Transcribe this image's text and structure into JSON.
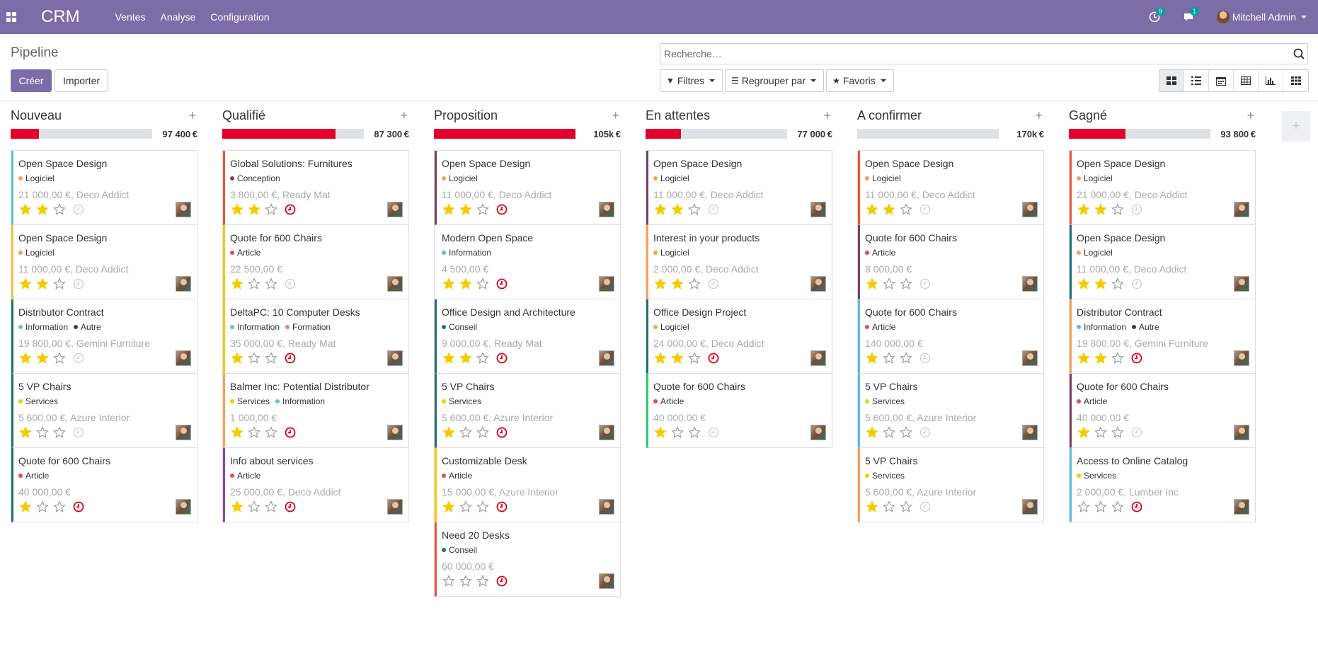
{
  "app": {
    "brand": "CRM",
    "menu": [
      "Ventes",
      "Analyse",
      "Configuration"
    ]
  },
  "systray": {
    "activity_count": "9",
    "message_count": "1",
    "user": "Mitchell Admin"
  },
  "control_panel": {
    "breadcrumb": "Pipeline",
    "create_label": "Créer",
    "import_label": "Importer",
    "search_placeholder": "Recherche…",
    "filters_label": "Filtres",
    "group_by_label": "Regrouper par",
    "favorites_label": "Favoris",
    "views": [
      "kanban",
      "list",
      "calendar",
      "pivot",
      "graph",
      "cohort"
    ]
  },
  "colors": {
    "accent": "#7c6ca8",
    "danger": "#e3002b",
    "star": "#f3cc00"
  },
  "columns": [
    {
      "title": "Nouveau",
      "sum": "97 400",
      "currency": "€",
      "progress": 0.2,
      "cards": [
        {
          "title": "Open Space Design",
          "tags": [
            {
              "label": "Logiciel",
              "color": "#f4a259"
            }
          ],
          "sub": "21 000,00 €, Deco Addict",
          "stars": 2,
          "activity": "none",
          "border": "#5bc0de"
        },
        {
          "title": "Open Space Design",
          "tags": [
            {
              "label": "Logiciel",
              "color": "#f4a259"
            }
          ],
          "sub": "11 000,00 €, Deco Addict",
          "stars": 2,
          "activity": "none",
          "border": "#f4c542"
        },
        {
          "title": "Distributor Contract",
          "tags": [
            {
              "label": "Information",
              "color": "#5bc0de"
            },
            {
              "label": "Autre",
              "color": "#3b3b5b"
            }
          ],
          "sub": "19 800,00 €, Gemini Furniture",
          "stars": 2,
          "activity": "none",
          "border": "#1f6f76"
        },
        {
          "title": "5 VP Chairs",
          "tags": [
            {
              "label": "Services",
              "color": "#f3cc00"
            }
          ],
          "sub": "5 600,00 €, Azure Interior",
          "stars": 1,
          "activity": "none",
          "border": "#1f6f76"
        },
        {
          "title": "Quote for 600 Chairs",
          "tags": [
            {
              "label": "Article",
              "color": "#e84a4a"
            }
          ],
          "sub": "40 000,00 €",
          "stars": 1,
          "activity": "late",
          "border": "#1f6f76"
        }
      ]
    },
    {
      "title": "Qualifié",
      "sum": "87 300",
      "currency": "€",
      "progress": 0.8,
      "cards": [
        {
          "title": "Global Solutions: Furnitures",
          "tags": [
            {
              "label": "Conception",
              "color": "#7b3f61"
            }
          ],
          "sub": "3 800,00 €, Ready Mat",
          "stars": 2,
          "activity": "late",
          "border": "#e8553e"
        },
        {
          "title": "Quote for 600 Chairs",
          "tags": [
            {
              "label": "Article",
              "color": "#e84a4a"
            }
          ],
          "sub": "22 500,00 €",
          "stars": 1,
          "activity": "none",
          "border": "#f3cc00"
        },
        {
          "title": "DeltaPC: 10 Computer Desks",
          "tags": [
            {
              "label": "Information",
              "color": "#5bc0de"
            },
            {
              "label": "Formation",
              "color": "#f07b7b"
            }
          ],
          "sub": "35 000,00 €, Ready Mat",
          "stars": 1,
          "activity": "late",
          "border": "#f3cc00"
        },
        {
          "title": "Balmer Inc: Potential Distributor",
          "tags": [
            {
              "label": "Services",
              "color": "#f3cc00"
            },
            {
              "label": "Information",
              "color": "#5bc0de"
            }
          ],
          "sub": "1 000,00 €",
          "stars": 1,
          "activity": "late",
          "border": "#f4a259"
        },
        {
          "title": "Info about services",
          "tags": [
            {
              "label": "Article",
              "color": "#e84a4a"
            }
          ],
          "sub": "25 000,00 €, Deco Addict",
          "stars": 1,
          "activity": "late",
          "border": "#8e44ad"
        }
      ]
    },
    {
      "title": "Proposition",
      "sum": "105k",
      "currency": "€",
      "progress": 1.0,
      "cards": [
        {
          "title": "Open Space Design",
          "tags": [
            {
              "label": "Logiciel",
              "color": "#f4a259"
            }
          ],
          "sub": "11 000,00 €, Deco Addict",
          "stars": 2,
          "activity": "late",
          "border": "#7b3f61"
        },
        {
          "title": "Modern Open Space",
          "tags": [
            {
              "label": "Information",
              "color": "#5bc0de"
            }
          ],
          "sub": "4 500,00 €",
          "stars": 2,
          "activity": "late",
          "border": "#ffffff"
        },
        {
          "title": "Office Design and Architecture",
          "tags": [
            {
              "label": "Conseil",
              "color": "#1f6f76"
            }
          ],
          "sub": "9 000,00 €, Ready Mat",
          "stars": 2,
          "activity": "late",
          "border": "#1f6f76"
        },
        {
          "title": "5 VP Chairs",
          "tags": [
            {
              "label": "Services",
              "color": "#f3cc00"
            }
          ],
          "sub": "5 600,00 €, Azure Interior",
          "stars": 1,
          "activity": "late",
          "border": "#1f6f76"
        },
        {
          "title": "Customizable Desk",
          "tags": [
            {
              "label": "Article",
              "color": "#e84a4a"
            }
          ],
          "sub": "15 000,00 €, Azure Interior",
          "stars": 1,
          "activity": "late",
          "border": "#f3cc00"
        },
        {
          "title": "Need 20 Desks",
          "tags": [
            {
              "label": "Conseil",
              "color": "#1f6f76"
            }
          ],
          "sub": "60 000,00 €",
          "stars": 0,
          "activity": "late",
          "border": "#e8553e"
        }
      ]
    },
    {
      "title": "En attentes",
      "sum": "77 000",
      "currency": "€",
      "progress": 0.25,
      "cards": [
        {
          "title": "Open Space Design",
          "tags": [
            {
              "label": "Logiciel",
              "color": "#f4a259"
            }
          ],
          "sub": "11 000,00 €, Deco Addict",
          "stars": 2,
          "activity": "none",
          "border": "#7b3f61"
        },
        {
          "title": "Interest in your products",
          "tags": [
            {
              "label": "Logiciel",
              "color": "#f4a259"
            }
          ],
          "sub": "2 000,00 €, Deco Addict",
          "stars": 2,
          "activity": "none",
          "border": "#f4a259"
        },
        {
          "title": "Office Design Project",
          "tags": [
            {
              "label": "Logiciel",
              "color": "#f4a259"
            }
          ],
          "sub": "24 000,00 €, Deco Addict",
          "stars": 2,
          "activity": "late",
          "border": "#1f6f76"
        },
        {
          "title": "Quote for 600 Chairs",
          "tags": [
            {
              "label": "Article",
              "color": "#e84a4a"
            }
          ],
          "sub": "40 000,00 €",
          "stars": 1,
          "activity": "none",
          "border": "#2ecc71"
        }
      ]
    },
    {
      "title": "A confirmer",
      "sum": "170k",
      "currency": "€",
      "progress": 0.0,
      "cards": [
        {
          "title": "Open Space Design",
          "tags": [
            {
              "label": "Logiciel",
              "color": "#f4a259"
            }
          ],
          "sub": "11 000,00 €, Deco Addict",
          "stars": 2,
          "activity": "none",
          "border": "#e8553e"
        },
        {
          "title": "Quote for 600 Chairs",
          "tags": [
            {
              "label": "Article",
              "color": "#e84a4a"
            }
          ],
          "sub": "8 000,00 €",
          "stars": 1,
          "activity": "none",
          "border": "#7b3f61"
        },
        {
          "title": "Quote for 600 Chairs",
          "tags": [
            {
              "label": "Article",
              "color": "#e84a4a"
            }
          ],
          "sub": "140 000,00 €",
          "stars": 1,
          "activity": "none",
          "border": "#5bc0de"
        },
        {
          "title": "5 VP Chairs",
          "tags": [
            {
              "label": "Services",
              "color": "#f3cc00"
            }
          ],
          "sub": "5 600,00 €, Azure Interior",
          "stars": 1,
          "activity": "none",
          "border": "#5bc0de"
        },
        {
          "title": "5 VP Chairs",
          "tags": [
            {
              "label": "Services",
              "color": "#f3cc00"
            }
          ],
          "sub": "5 600,00 €, Azure Interior",
          "stars": 1,
          "activity": "none",
          "border": "#f4a259"
        }
      ]
    },
    {
      "title": "Gagné",
      "sum": "93 800",
      "currency": "€",
      "progress": 0.4,
      "cards": [
        {
          "title": "Open Space Design",
          "tags": [
            {
              "label": "Logiciel",
              "color": "#f4a259"
            }
          ],
          "sub": "21 000,00 €, Deco Addict",
          "stars": 2,
          "activity": "none",
          "border": "#e8553e"
        },
        {
          "title": "Open Space Design",
          "tags": [
            {
              "label": "Logiciel",
              "color": "#f4a259"
            }
          ],
          "sub": "11 000,00 €, Deco Addict",
          "stars": 2,
          "activity": "none",
          "border": "#1f6f76"
        },
        {
          "title": "Distributor Contract",
          "tags": [
            {
              "label": "Information",
              "color": "#5bc0de"
            },
            {
              "label": "Autre",
              "color": "#3b3b5b"
            }
          ],
          "sub": "19 800,00 €, Gemini Furniture",
          "stars": 2,
          "activity": "late",
          "border": "#f4a259"
        },
        {
          "title": "Quote for 600 Chairs",
          "tags": [
            {
              "label": "Article",
              "color": "#e84a4a"
            }
          ],
          "sub": "40 000,00 €",
          "stars": 1,
          "activity": "none",
          "border": "#7b3f61"
        },
        {
          "title": "Access to Online Catalog",
          "tags": [
            {
              "label": "Services",
              "color": "#f3cc00"
            }
          ],
          "sub": "2 000,00 €, Lumber Inc",
          "stars": 0,
          "activity": "late",
          "border": "#5bc0de"
        }
      ]
    }
  ]
}
